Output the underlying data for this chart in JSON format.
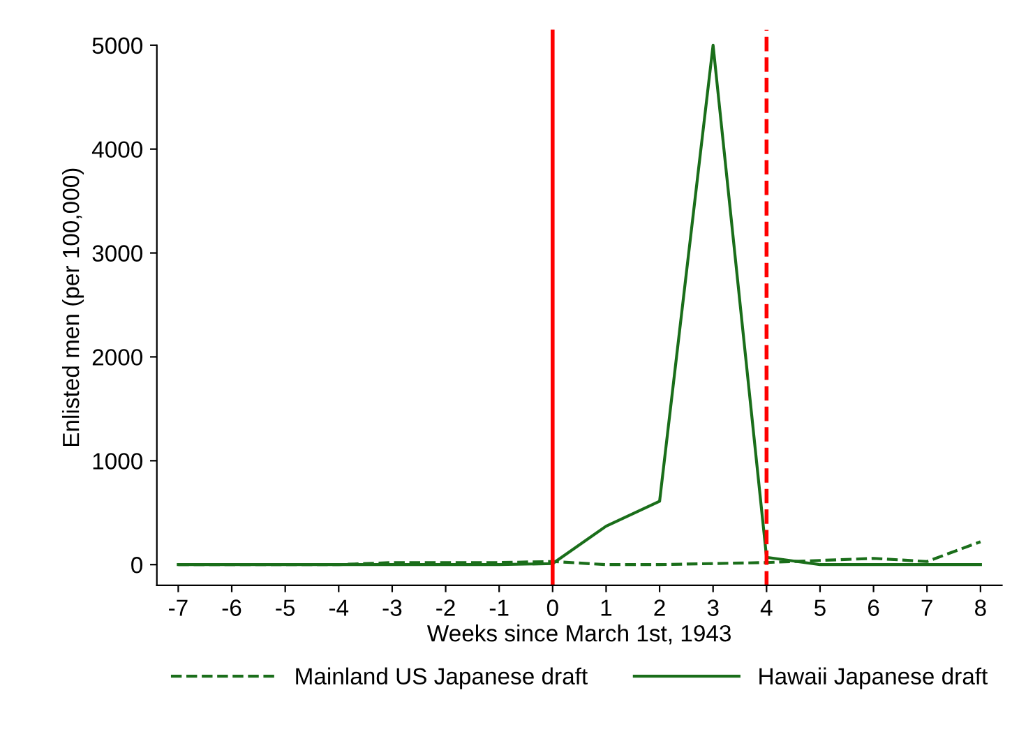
{
  "chart_data": {
    "type": "line",
    "xlabel": "Weeks since March 1st, 1943",
    "ylabel": "Enlisted men (per 100,000)",
    "x": [
      -7,
      -6,
      -5,
      -4,
      -3,
      -2,
      -1,
      0,
      1,
      2,
      3,
      4,
      5,
      6,
      7,
      8
    ],
    "series": [
      {
        "name": "Mainland US Japanese draft",
        "color": "#1a6e1a",
        "line_style": "dashed",
        "values": [
          0,
          0,
          0,
          0,
          20,
          20,
          20,
          30,
          0,
          0,
          10,
          20,
          40,
          60,
          30,
          220
        ]
      },
      {
        "name": "Hawaii Japanese draft",
        "color": "#1a6e1a",
        "line_style": "solid",
        "values": [
          0,
          0,
          0,
          0,
          0,
          0,
          0,
          10,
          370,
          610,
          5000,
          70,
          0,
          0,
          0,
          0
        ]
      }
    ],
    "xlim": [
      -7.4,
      8.4
    ],
    "xticks": [
      -7,
      -6,
      -5,
      -4,
      -3,
      -2,
      -1,
      0,
      1,
      2,
      3,
      4,
      5,
      6,
      7,
      8
    ],
    "ylim": [
      -200,
      5150
    ],
    "yticks": [
      0,
      1000,
      2000,
      3000,
      4000,
      5000
    ],
    "ref_lines": [
      {
        "axis": "x",
        "value": 0,
        "color": "#ff0000",
        "line_style": "solid"
      },
      {
        "axis": "x",
        "value": 4,
        "color": "#ff0000",
        "line_style": "dashed"
      }
    ],
    "grid": false,
    "legend": "bottom"
  }
}
